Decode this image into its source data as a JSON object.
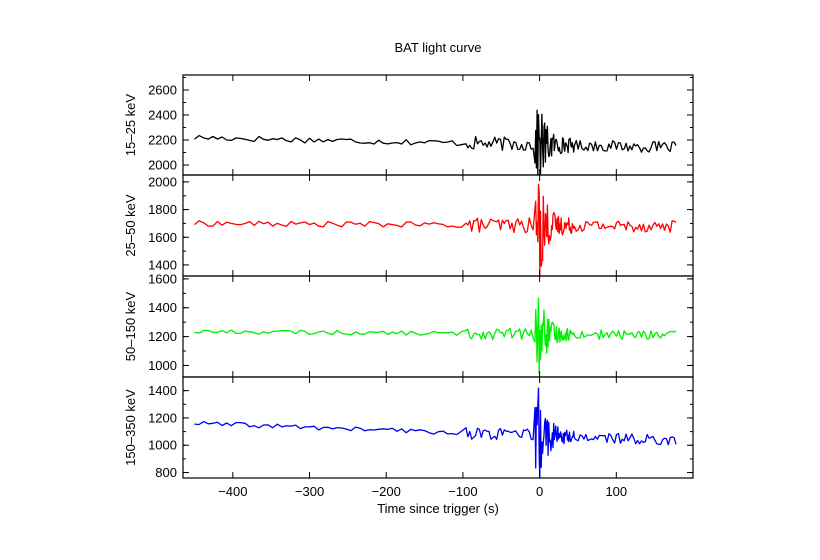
{
  "chart_data": {
    "type": "line",
    "title": "BAT light curve",
    "xlabel": "Time since trigger (s)",
    "xlim": [
      -465,
      200
    ],
    "x_ticks": [
      -400,
      -300,
      -200,
      -100,
      0,
      100
    ],
    "x_tick_labels": [
      "−400",
      "−300",
      "−200",
      "−100",
      "0",
      "100"
    ],
    "x_range": [
      -450,
      180
    ],
    "burst_time": 0,
    "grid": false,
    "legend": "none",
    "panels": [
      {
        "ylabel": "15–25 keV",
        "color": "#000000",
        "ylim": [
          1920,
          2720
        ],
        "y_ticks": [
          2000,
          2200,
          2400,
          2600
        ],
        "baseline_start": 2220,
        "baseline_end": 2140,
        "quiet_noise": 25,
        "active_noise": 55,
        "burst_amplitude": 230
      },
      {
        "ylabel": "25–50 keV",
        "color": "#ff0000",
        "ylim": [
          1320,
          2050
        ],
        "y_ticks": [
          1400,
          1600,
          1800,
          2000
        ],
        "baseline_start": 1700,
        "baseline_end": 1680,
        "quiet_noise": 20,
        "active_noise": 55,
        "burst_amplitude": 260
      },
      {
        "ylabel": "50–150 keV",
        "color": "#00ee00",
        "ylim": [
          920,
          1620
        ],
        "y_ticks": [
          1000,
          1200,
          1400,
          1600
        ],
        "baseline_start": 1235,
        "baseline_end": 1210,
        "quiet_noise": 15,
        "active_noise": 40,
        "burst_amplitude": 200
      },
      {
        "ylabel": "150–350 keV",
        "color": "#0000ee",
        "ylim": [
          760,
          1500
        ],
        "y_ticks": [
          800,
          1000,
          1200,
          1400
        ],
        "baseline_start": 1160,
        "baseline_end": 1035,
        "quiet_noise": 18,
        "active_noise": 45,
        "burst_amplitude": 260
      }
    ]
  }
}
